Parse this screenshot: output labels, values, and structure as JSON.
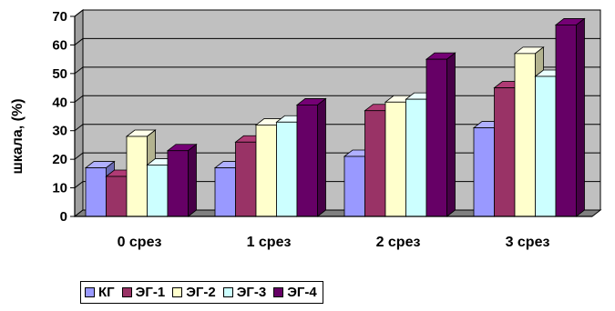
{
  "chart_data": {
    "type": "bar",
    "title": "",
    "xlabel": "",
    "ylabel": "шкала, (%)",
    "ylim": [
      0,
      70
    ],
    "yticks": [
      0,
      10,
      20,
      30,
      40,
      50,
      60,
      70
    ],
    "grid": true,
    "legend_position": "bottom",
    "categories": [
      "0 срез",
      "1 срез",
      "2 срез",
      "3 срез"
    ],
    "series": [
      {
        "name": "КГ",
        "color": "#9999ff",
        "values": [
          17,
          17,
          21,
          31
        ]
      },
      {
        "name": "ЭГ-1",
        "color": "#993366",
        "values": [
          14,
          26,
          37,
          45
        ]
      },
      {
        "name": "ЭГ-2",
        "color": "#ffffcc",
        "values": [
          28,
          32,
          40,
          57
        ]
      },
      {
        "name": "ЭГ-3",
        "color": "#ccffff",
        "values": [
          18,
          33,
          41,
          49
        ]
      },
      {
        "name": "ЭГ-4",
        "color": "#660066",
        "values": [
          23,
          39,
          55,
          67
        ]
      }
    ]
  }
}
